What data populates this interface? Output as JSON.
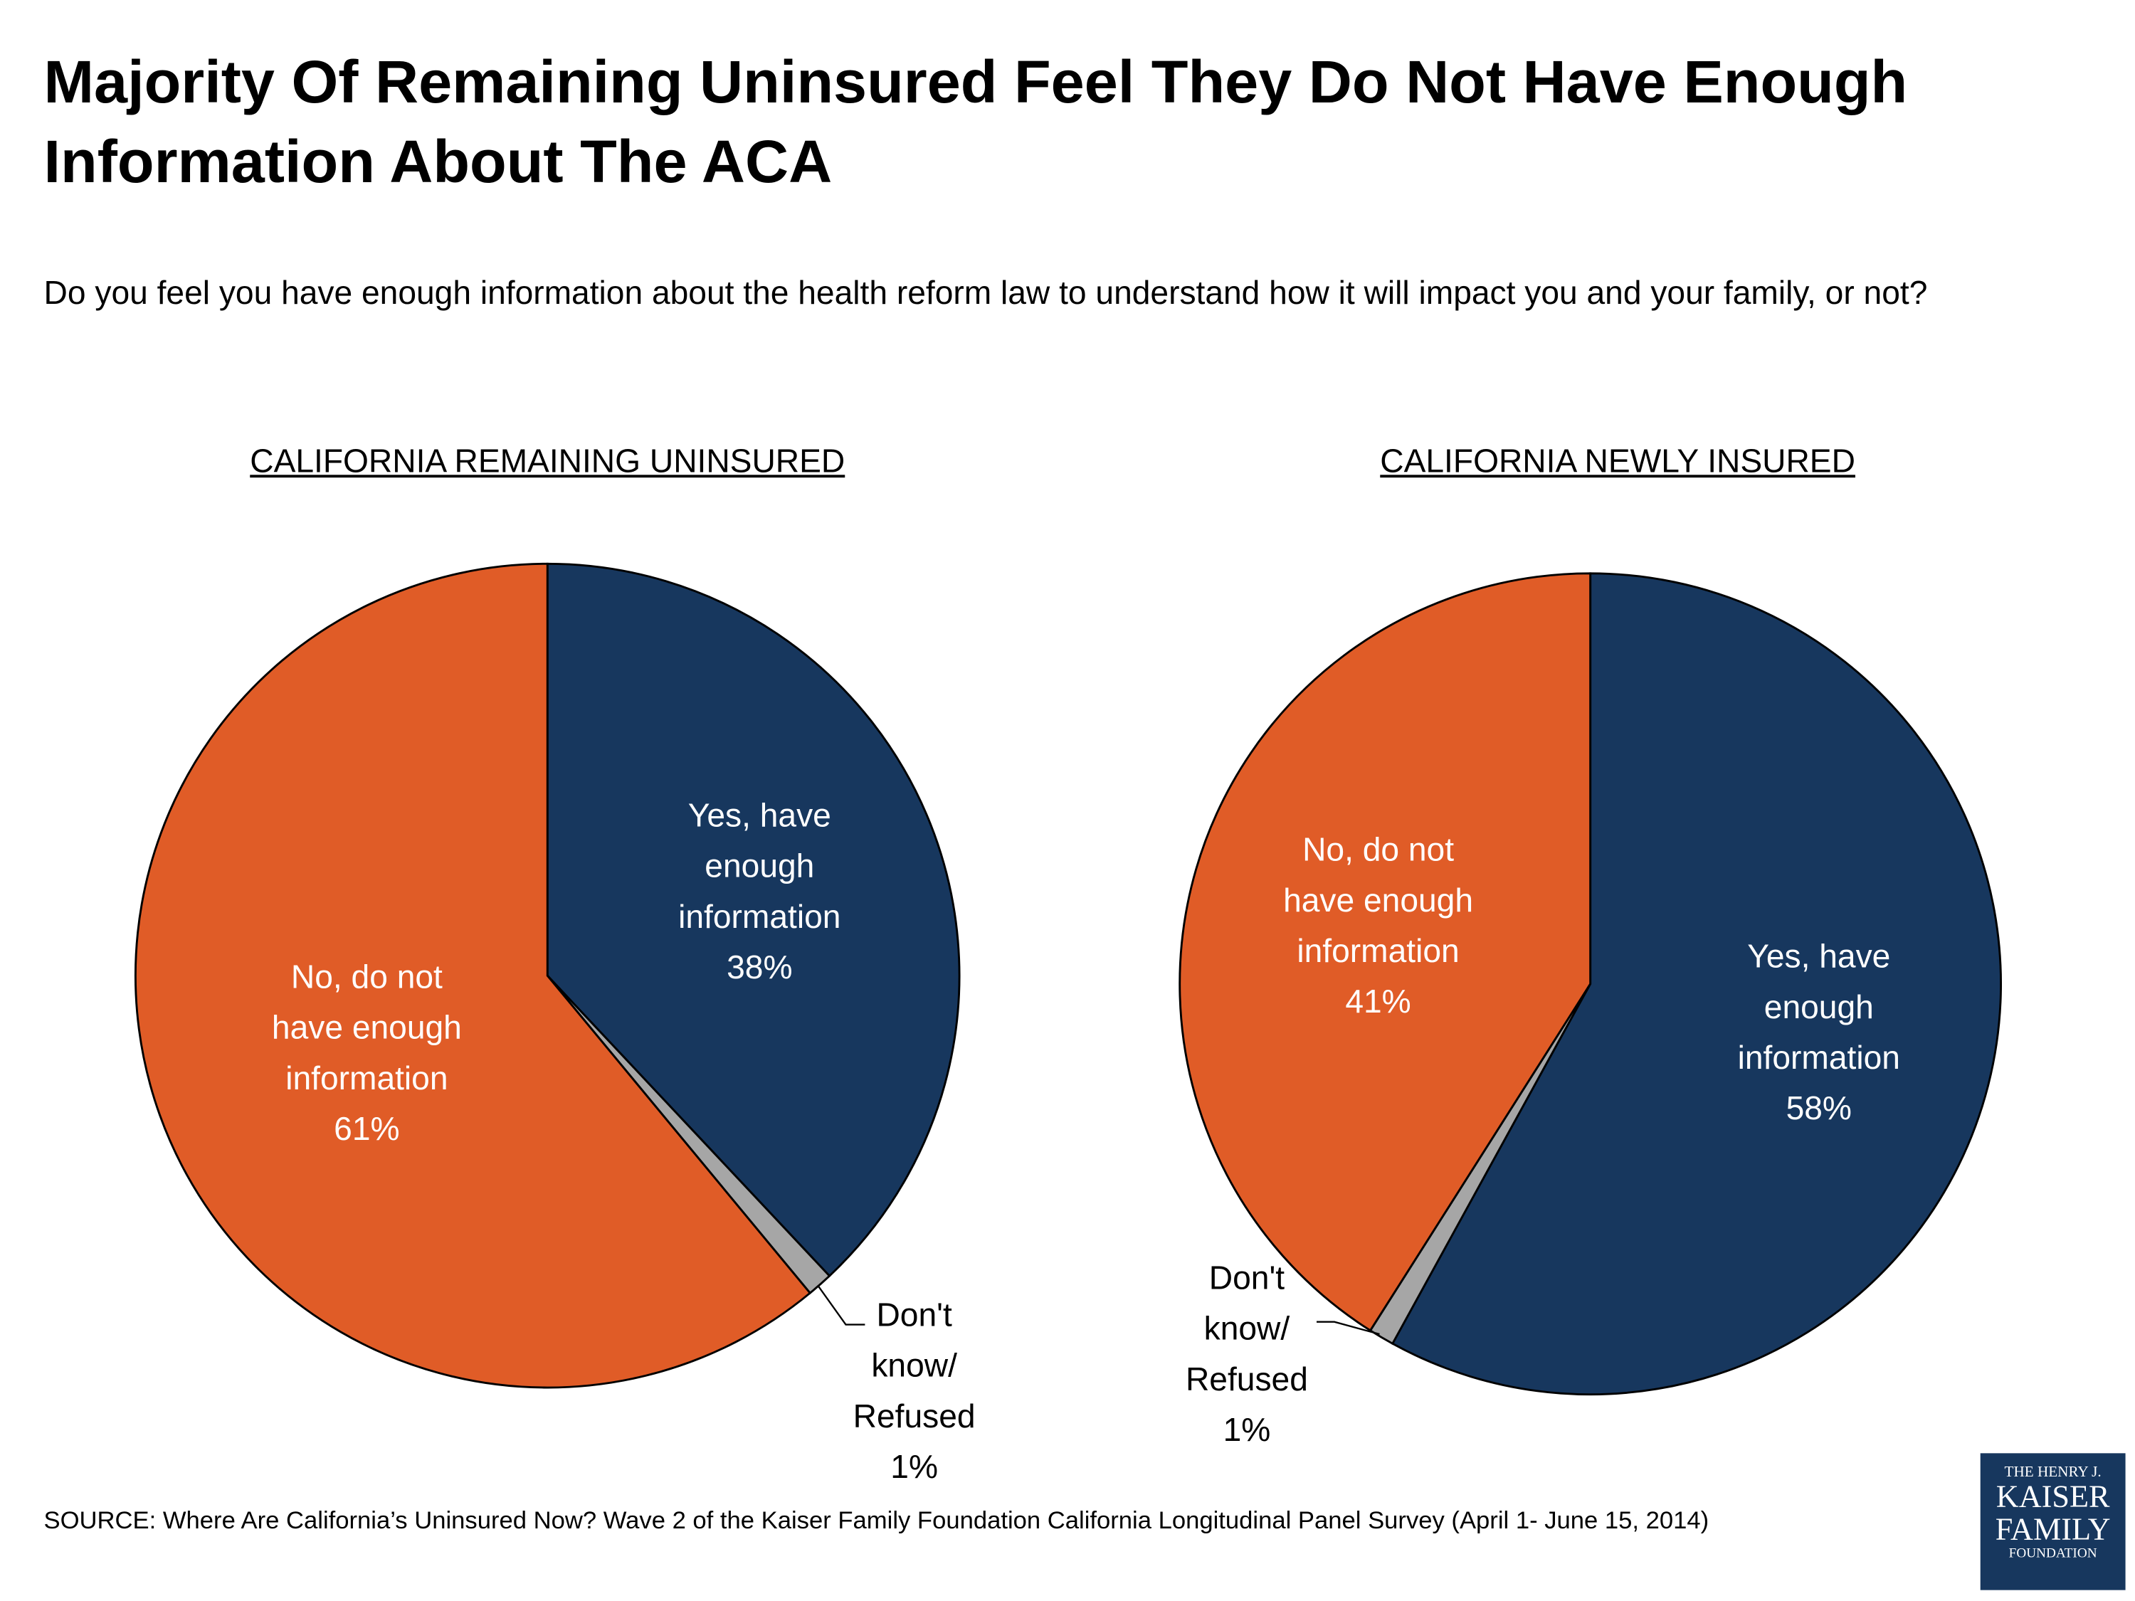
{
  "title": "Majority Of Remaining Uninsured Feel They Do Not Have Enough Information About The ACA",
  "subtitle": "Do you feel you have enough information about the health reform law to understand how it will impact you and your family, or not?",
  "chart_data": [
    {
      "type": "pie",
      "title": "CALIFORNIA REMAINING UNINSURED",
      "categories": [
        "Yes, have enough information",
        "Don't know/ Refused",
        "No, do not have enough information"
      ],
      "values": [
        38,
        1,
        61
      ],
      "value_labels": [
        "38%",
        "1%",
        "61%"
      ],
      "colors": [
        "#17375e",
        "#a6a6a6",
        "#e05c27"
      ]
    },
    {
      "type": "pie",
      "title": "CALIFORNIA NEWLY INSURED",
      "categories": [
        "Yes, have enough information",
        "Don't know/ Refused",
        "No, do not have enough information"
      ],
      "values": [
        58,
        1,
        41
      ],
      "value_labels": [
        "58%",
        "1%",
        "41%"
      ],
      "colors": [
        "#17375e",
        "#a6a6a6",
        "#e05c27"
      ]
    }
  ],
  "source": "SOURCE: Where Are California’s Uninsured Now? Wave 2 of the Kaiser Family Foundation California Longitudinal Panel Survey (April 1- June 15, 2014)",
  "logo": [
    "THE HENRY J.",
    "KAISER",
    "FAMILY",
    "FOUNDATION"
  ]
}
